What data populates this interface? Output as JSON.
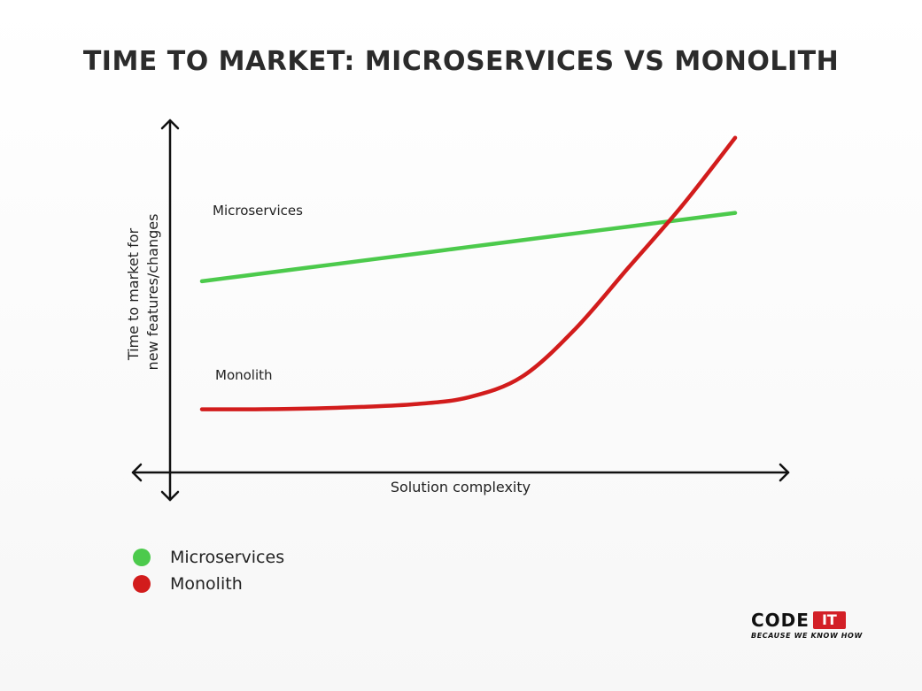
{
  "title": "TIME TO MARKET: MICROSERVICES VS MONOLITH",
  "chart_data": {
    "type": "line",
    "title": "TIME TO MARKET: MICROSERVICES VS MONOLITH",
    "xlabel": "Solution complexity",
    "ylabel_lines": [
      "Time to market for",
      "new features/changes"
    ],
    "x": [
      0,
      1,
      2,
      3,
      4,
      5,
      6,
      7,
      8,
      9,
      10
    ],
    "xlim": [
      0,
      10
    ],
    "ylim": [
      0,
      10
    ],
    "grid": false,
    "legend_position": "bottom-left",
    "series": [
      {
        "name": "Microservices",
        "color": "#4cca4c",
        "values": [
          5.6,
          5.8,
          6.0,
          6.2,
          6.4,
          6.6,
          6.8,
          7.0,
          7.2,
          7.4,
          7.6
        ]
      },
      {
        "name": "Monolith",
        "color": "#d21c1c",
        "values": [
          1.85,
          1.85,
          1.87,
          1.92,
          2.0,
          2.2,
          2.8,
          4.2,
          6.0,
          7.8,
          9.8
        ]
      }
    ],
    "annotations": [
      "Microservices",
      "Monolith"
    ]
  },
  "legend": [
    {
      "label": "Microservices",
      "color": "#4cca4c"
    },
    {
      "label": "Monolith",
      "color": "#d21c1c"
    }
  ],
  "logo": {
    "word": "CODE",
    "badge": "IT",
    "tagline": "BECAUSE WE KNOW HOW"
  }
}
